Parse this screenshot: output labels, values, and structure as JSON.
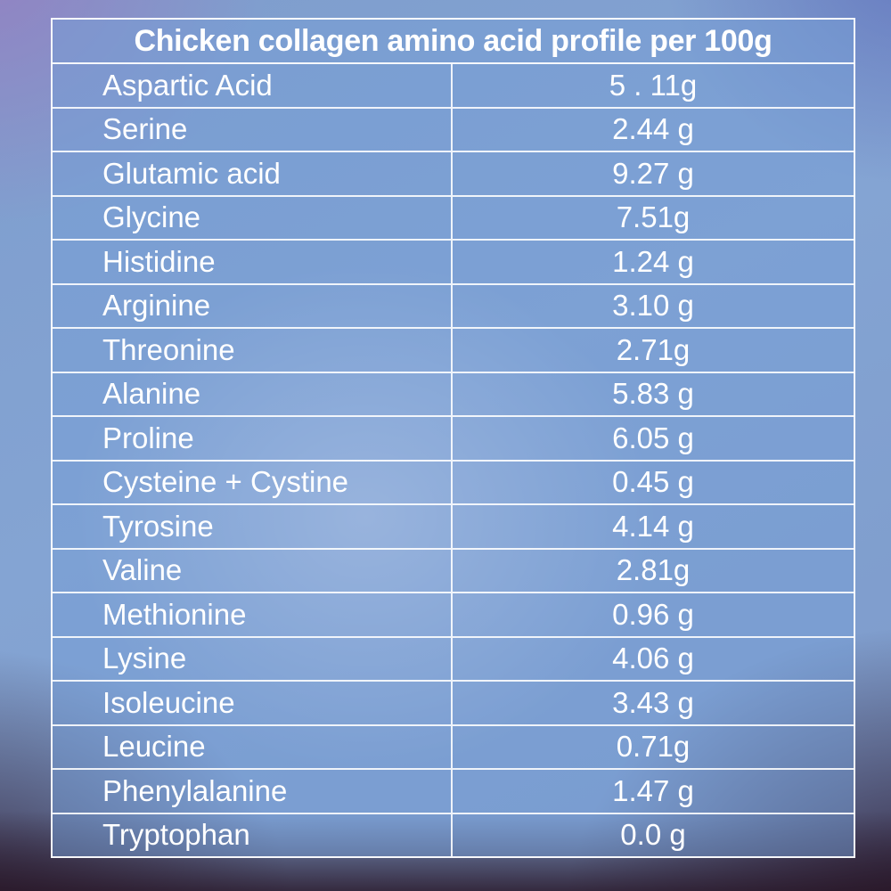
{
  "table": {
    "header": "Chicken collagen amino acid profile per 100g",
    "rows": [
      {
        "name": "Aspartic Acid",
        "value": "5 . 11g"
      },
      {
        "name": "Serine",
        "value": "2.44 g"
      },
      {
        "name": "Glutamic acid",
        "value": "9.27 g"
      },
      {
        "name": "Glycine",
        "value": "7.51g"
      },
      {
        "name": "Histidine",
        "value": "1.24 g"
      },
      {
        "name": "Arginine",
        "value": "3.10 g"
      },
      {
        "name": "Threonine",
        "value": "2.71g"
      },
      {
        "name": "Alanine",
        "value": "5.83 g"
      },
      {
        "name": "Proline",
        "value": "6.05 g"
      },
      {
        "name": "Cysteine + Cystine",
        "value": "0.45 g"
      },
      {
        "name": "Tyrosine",
        "value": "4.14 g"
      },
      {
        "name": "Valine",
        "value": "2.81g"
      },
      {
        "name": "Methionine",
        "value": "0.96 g"
      },
      {
        "name": "Lysine",
        "value": "4.06 g"
      },
      {
        "name": "Isoleucine",
        "value": "3.43 g"
      },
      {
        "name": "Leucine",
        "value": "0.71g"
      },
      {
        "name": "Phenylalanine",
        "value": "1.47 g"
      },
      {
        "name": "Tryptophan",
        "value": "0.0 g"
      }
    ]
  },
  "colors": {
    "text": "#ffffff",
    "grid_line": "#ffffff",
    "table_fill_blue": "#769ed6",
    "background_blue": "#82a2d2",
    "corner_purple": "#9480c1",
    "corner_dark_maroon": "#2b1a2c",
    "center_haze": "#f3f0f8"
  },
  "chart_data": {
    "type": "table",
    "title": "Chicken collagen amino acid profile per 100g",
    "categories": [
      "Aspartic Acid",
      "Serine",
      "Glutamic acid",
      "Glycine",
      "Histidine",
      "Arginine",
      "Threonine",
      "Alanine",
      "Proline",
      "Cysteine + Cystine",
      "Tyrosine",
      "Valine",
      "Methionine",
      "Lysine",
      "Isoleucine",
      "Leucine",
      "Phenylalanine",
      "Tryptophan"
    ],
    "values": [
      5.11,
      2.44,
      9.27,
      7.51,
      1.24,
      3.1,
      2.71,
      5.83,
      6.05,
      0.45,
      4.14,
      2.81,
      0.96,
      4.06,
      3.43,
      0.71,
      1.47,
      0.0
    ],
    "unit": "g",
    "value_labels": [
      "5 . 11g",
      "2.44 g",
      "9.27 g",
      "7.51g",
      "1.24 g",
      "3.10 g",
      "2.71g",
      "5.83 g",
      "6.05 g",
      "0.45 g",
      "4.14 g",
      "2.81g",
      "0.96 g",
      "4.06 g",
      "3.43 g",
      "0.71g",
      "1.47 g",
      "0.0 g"
    ]
  }
}
